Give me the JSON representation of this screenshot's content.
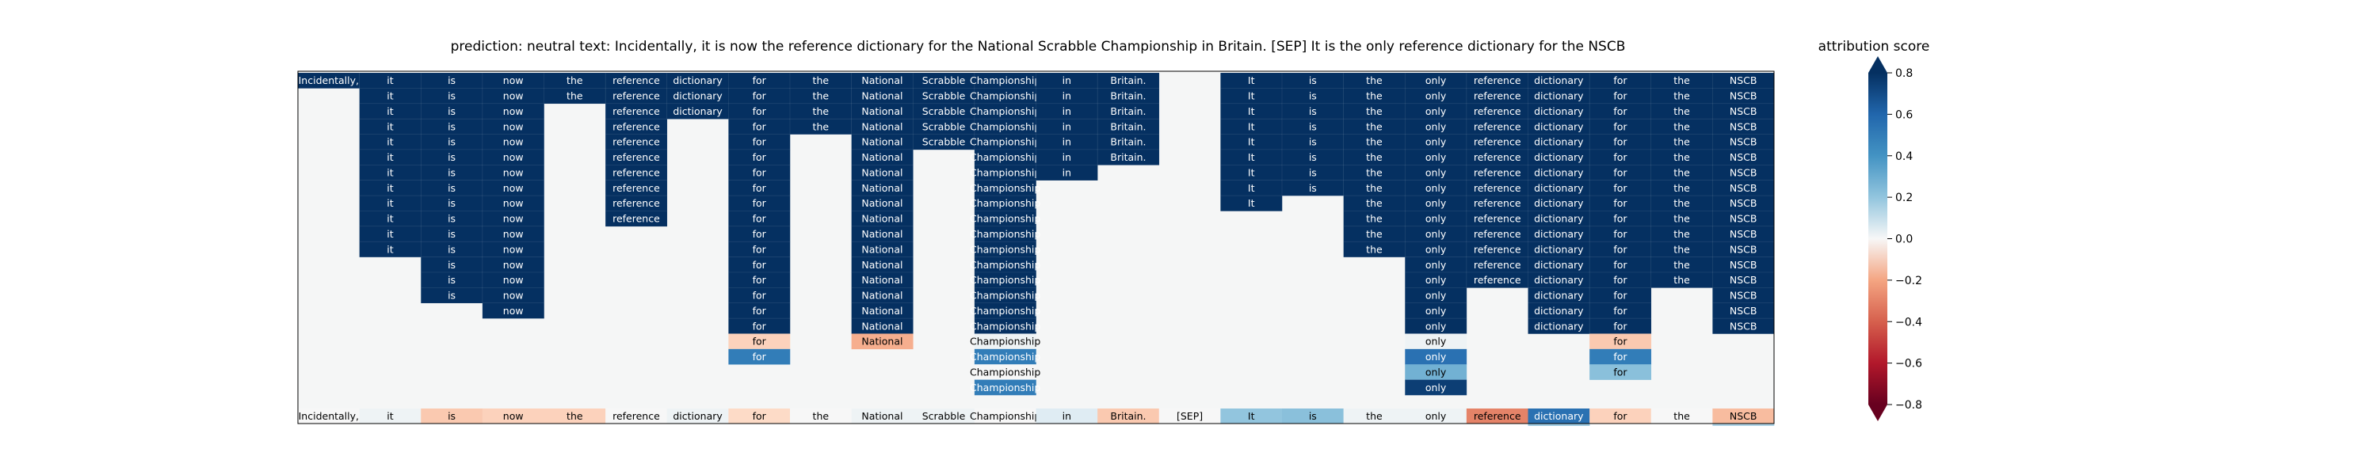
{
  "chart_data": {
    "type": "heatmap",
    "title": "prediction:  neutral     text:  Incidentally, it is now the reference dictionary for the National Scrabble Championship in Britain. [SEP] It is the only reference dictionary for the NSCB",
    "tokens": [
      "Incidentally,",
      "it",
      "is",
      "now",
      "the",
      "reference",
      "dictionary",
      "for",
      "the",
      "National",
      "Scrabble",
      "Championship",
      "in",
      "Britain.",
      "[SEP]",
      "It",
      "is",
      "the",
      "only",
      "reference",
      "dictionary",
      "for",
      "the",
      "NSCB"
    ],
    "colorbar": {
      "label": "attribution score",
      "min": -0.8,
      "max": 0.8,
      "ticks": [
        0.8,
        0.6,
        0.4,
        0.2,
        0.0,
        -0.2,
        -0.4,
        -0.6,
        -0.8
      ],
      "tick_labels": [
        "0.8",
        "0.6",
        "0.4",
        "0.2",
        "0.0",
        "−0.2",
        "−0.4",
        "−0.6",
        "−0.8"
      ]
    },
    "bottom_row_scores": [
      0.0,
      0.02,
      -0.12,
      -0.1,
      -0.1,
      0.0,
      0.02,
      -0.08,
      0.0,
      0.02,
      0.02,
      0.0,
      0.05,
      -0.12,
      0.0,
      0.2,
      0.22,
      0.02,
      0.02,
      -0.3,
      0.55,
      -0.1,
      0.0,
      -0.15
    ],
    "columns": [
      {
        "cells": [
          [
            0,
            0.95
          ]
        ]
      },
      {
        "cells": [
          [
            0,
            0.95
          ],
          [
            1,
            0.95
          ],
          [
            2,
            0.95
          ],
          [
            3,
            0.95
          ],
          [
            4,
            0.95
          ],
          [
            5,
            0.95
          ],
          [
            6,
            0.95
          ],
          [
            7,
            0.95
          ],
          [
            8,
            0.95
          ],
          [
            9,
            0.95
          ],
          [
            10,
            0.95
          ],
          [
            11,
            0.95
          ]
        ]
      },
      {
        "cells": [
          [
            0,
            0.95
          ],
          [
            1,
            0.95
          ],
          [
            2,
            0.95
          ],
          [
            3,
            0.95
          ],
          [
            4,
            0.95
          ],
          [
            5,
            0.95
          ],
          [
            6,
            0.95
          ],
          [
            7,
            0.95
          ],
          [
            8,
            0.95
          ],
          [
            9,
            0.95
          ],
          [
            10,
            0.95
          ],
          [
            11,
            0.95
          ],
          [
            12,
            0.95
          ],
          [
            13,
            0.95
          ],
          [
            14,
            0.95
          ]
        ]
      },
      {
        "cells": [
          [
            0,
            0.95
          ],
          [
            1,
            0.95
          ],
          [
            2,
            0.95
          ],
          [
            3,
            0.95
          ],
          [
            4,
            0.95
          ],
          [
            5,
            0.95
          ],
          [
            6,
            0.95
          ],
          [
            7,
            0.95
          ],
          [
            8,
            0.95
          ],
          [
            9,
            0.95
          ],
          [
            10,
            0.95
          ],
          [
            11,
            0.95
          ],
          [
            12,
            0.95
          ],
          [
            13,
            0.95
          ],
          [
            14,
            0.95
          ],
          [
            15,
            0.95
          ]
        ]
      },
      {
        "cells": [
          [
            0,
            0.95
          ],
          [
            1,
            0.95
          ]
        ]
      },
      {
        "cells": [
          [
            0,
            0.95
          ],
          [
            1,
            0.95
          ],
          [
            2,
            0.95
          ],
          [
            3,
            0.95
          ],
          [
            4,
            0.95
          ],
          [
            5,
            0.95
          ],
          [
            6,
            0.95
          ],
          [
            7,
            0.95
          ],
          [
            8,
            0.95
          ],
          [
            9,
            0.95
          ]
        ]
      },
      {
        "cells": [
          [
            0,
            0.95
          ],
          [
            1,
            0.95
          ],
          [
            2,
            0.95
          ]
        ]
      },
      {
        "cells": [
          [
            0,
            0.95
          ],
          [
            1,
            0.95
          ],
          [
            2,
            0.95
          ],
          [
            3,
            0.95
          ],
          [
            4,
            0.95
          ],
          [
            5,
            0.95
          ],
          [
            6,
            0.95
          ],
          [
            7,
            0.95
          ],
          [
            8,
            0.95
          ],
          [
            9,
            0.95
          ],
          [
            10,
            0.95
          ],
          [
            11,
            0.95
          ],
          [
            12,
            0.95
          ],
          [
            13,
            0.95
          ],
          [
            14,
            0.95
          ],
          [
            15,
            0.95
          ],
          [
            16,
            0.95
          ],
          [
            17,
            -0.1
          ],
          [
            18,
            0.5
          ]
        ]
      },
      {
        "cells": [
          [
            0,
            0.95
          ],
          [
            1,
            0.95
          ],
          [
            2,
            0.95
          ],
          [
            3,
            0.95
          ]
        ]
      },
      {
        "cells": [
          [
            0,
            0.95
          ],
          [
            1,
            0.95
          ],
          [
            2,
            0.95
          ],
          [
            3,
            0.95
          ],
          [
            4,
            0.95
          ],
          [
            5,
            0.95
          ],
          [
            6,
            0.95
          ],
          [
            7,
            0.95
          ],
          [
            8,
            0.95
          ],
          [
            9,
            0.95
          ],
          [
            10,
            0.95
          ],
          [
            11,
            0.95
          ],
          [
            12,
            0.95
          ],
          [
            13,
            0.95
          ],
          [
            14,
            0.95
          ],
          [
            15,
            0.95
          ],
          [
            16,
            0.95
          ],
          [
            17,
            -0.18
          ]
        ]
      },
      {
        "cells": [
          [
            0,
            0.95
          ],
          [
            1,
            0.95
          ],
          [
            2,
            0.95
          ],
          [
            3,
            0.95
          ],
          [
            4,
            0.95
          ]
        ]
      },
      {
        "cells": [
          [
            0,
            0.95
          ],
          [
            1,
            0.95
          ],
          [
            2,
            0.95
          ],
          [
            3,
            0.95
          ],
          [
            4,
            0.95
          ],
          [
            5,
            0.95
          ],
          [
            6,
            0.95
          ],
          [
            7,
            0.95
          ],
          [
            8,
            0.95
          ],
          [
            9,
            0.95
          ],
          [
            10,
            0.95
          ],
          [
            11,
            0.95
          ],
          [
            12,
            0.95
          ],
          [
            13,
            0.95
          ],
          [
            14,
            0.95
          ],
          [
            15,
            0.95
          ],
          [
            16,
            0.95
          ],
          [
            17,
            0.02
          ],
          [
            18,
            0.5
          ],
          [
            19,
            0.0
          ],
          [
            20,
            0.5
          ]
        ]
      },
      {
        "cells": [
          [
            0,
            0.95
          ],
          [
            1,
            0.95
          ],
          [
            2,
            0.95
          ],
          [
            3,
            0.95
          ],
          [
            4,
            0.95
          ],
          [
            5,
            0.95
          ],
          [
            6,
            0.95
          ]
        ]
      },
      {
        "cells": [
          [
            0,
            0.95
          ],
          [
            1,
            0.95
          ],
          [
            2,
            0.95
          ],
          [
            3,
            0.95
          ],
          [
            4,
            0.95
          ],
          [
            5,
            0.95
          ]
        ]
      },
      {
        "cells": []
      },
      {
        "cells": [
          [
            0,
            0.95
          ],
          [
            1,
            0.95
          ],
          [
            2,
            0.95
          ],
          [
            3,
            0.95
          ],
          [
            4,
            0.95
          ],
          [
            5,
            0.95
          ],
          [
            6,
            0.95
          ],
          [
            7,
            0.95
          ],
          [
            8,
            0.95
          ]
        ]
      },
      {
        "cells": [
          [
            0,
            0.95
          ],
          [
            1,
            0.95
          ],
          [
            2,
            0.95
          ],
          [
            3,
            0.95
          ],
          [
            4,
            0.95
          ],
          [
            5,
            0.95
          ],
          [
            6,
            0.95
          ],
          [
            7,
            0.95
          ]
        ]
      },
      {
        "cells": [
          [
            0,
            0.95
          ],
          [
            1,
            0.95
          ],
          [
            2,
            0.95
          ],
          [
            3,
            0.95
          ],
          [
            4,
            0.95
          ],
          [
            5,
            0.95
          ],
          [
            6,
            0.95
          ],
          [
            7,
            0.95
          ],
          [
            8,
            0.95
          ],
          [
            9,
            0.95
          ],
          [
            10,
            0.95
          ],
          [
            11,
            0.95
          ]
        ]
      },
      {
        "cells": [
          [
            0,
            0.95
          ],
          [
            1,
            0.95
          ],
          [
            2,
            0.95
          ],
          [
            3,
            0.95
          ],
          [
            4,
            0.95
          ],
          [
            5,
            0.95
          ],
          [
            6,
            0.95
          ],
          [
            7,
            0.95
          ],
          [
            8,
            0.95
          ],
          [
            9,
            0.95
          ],
          [
            10,
            0.95
          ],
          [
            11,
            0.95
          ],
          [
            12,
            0.95
          ],
          [
            13,
            0.95
          ],
          [
            14,
            0.95
          ],
          [
            15,
            0.95
          ],
          [
            16,
            0.95
          ],
          [
            17,
            0.02
          ],
          [
            18,
            0.55
          ],
          [
            19,
            0.28
          ],
          [
            20,
            0.75
          ]
        ]
      },
      {
        "cells": [
          [
            0,
            0.95
          ],
          [
            1,
            0.95
          ],
          [
            2,
            0.95
          ],
          [
            3,
            0.95
          ],
          [
            4,
            0.95
          ],
          [
            5,
            0.95
          ],
          [
            6,
            0.95
          ],
          [
            7,
            0.95
          ],
          [
            8,
            0.95
          ],
          [
            9,
            0.95
          ],
          [
            10,
            0.95
          ],
          [
            11,
            0.95
          ],
          [
            12,
            0.95
          ],
          [
            13,
            0.95
          ]
        ]
      },
      {
        "cells": [
          [
            0,
            0.95
          ],
          [
            1,
            0.95
          ],
          [
            2,
            0.95
          ],
          [
            3,
            0.95
          ],
          [
            4,
            0.95
          ],
          [
            5,
            0.95
          ],
          [
            6,
            0.95
          ],
          [
            7,
            0.95
          ],
          [
            8,
            0.95
          ],
          [
            9,
            0.95
          ],
          [
            10,
            0.95
          ],
          [
            11,
            0.95
          ],
          [
            12,
            0.95
          ],
          [
            13,
            0.95
          ],
          [
            14,
            0.95
          ],
          [
            15,
            0.95
          ],
          [
            16,
            0.95
          ],
          [
            22,
            0.18
          ]
        ]
      },
      {
        "cells": [
          [
            0,
            0.95
          ],
          [
            1,
            0.95
          ],
          [
            2,
            0.95
          ],
          [
            3,
            0.95
          ],
          [
            4,
            0.95
          ],
          [
            5,
            0.95
          ],
          [
            6,
            0.95
          ],
          [
            7,
            0.95
          ],
          [
            8,
            0.95
          ],
          [
            9,
            0.95
          ],
          [
            10,
            0.95
          ],
          [
            11,
            0.95
          ],
          [
            12,
            0.95
          ],
          [
            13,
            0.95
          ],
          [
            14,
            0.95
          ],
          [
            15,
            0.95
          ],
          [
            16,
            0.95
          ],
          [
            17,
            -0.12
          ],
          [
            18,
            0.5
          ],
          [
            19,
            0.22
          ]
        ]
      },
      {
        "cells": [
          [
            0,
            0.95
          ],
          [
            1,
            0.95
          ],
          [
            2,
            0.95
          ],
          [
            3,
            0.95
          ],
          [
            4,
            0.95
          ],
          [
            5,
            0.95
          ],
          [
            6,
            0.95
          ],
          [
            7,
            0.95
          ],
          [
            8,
            0.95
          ],
          [
            9,
            0.95
          ],
          [
            10,
            0.95
          ],
          [
            11,
            0.95
          ],
          [
            12,
            0.95
          ],
          [
            13,
            0.95
          ]
        ]
      },
      {
        "cells": [
          [
            0,
            0.95
          ],
          [
            1,
            0.95
          ],
          [
            2,
            0.95
          ],
          [
            3,
            0.95
          ],
          [
            4,
            0.95
          ],
          [
            5,
            0.95
          ],
          [
            6,
            0.95
          ],
          [
            7,
            0.95
          ],
          [
            8,
            0.95
          ],
          [
            9,
            0.95
          ],
          [
            10,
            0.95
          ],
          [
            11,
            0.95
          ],
          [
            12,
            0.95
          ],
          [
            13,
            0.95
          ],
          [
            14,
            0.95
          ],
          [
            15,
            0.95
          ],
          [
            16,
            0.95
          ],
          [
            22,
            0.15
          ]
        ]
      }
    ]
  }
}
